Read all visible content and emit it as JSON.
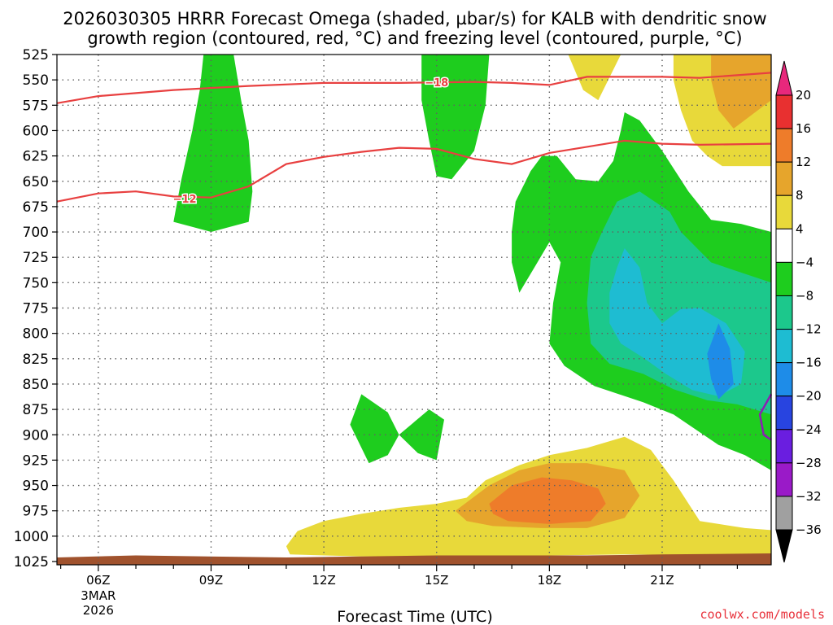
{
  "chart_data": {
    "type": "contour",
    "title_line1": "2026030305 HRRR Forecast Omega (shaded, µbar/s) for KALB with dendritic snow",
    "title_line2": "growth region (contoured, red, °C) and freezing level (contoured, purple, °C)",
    "xlabel": "Forecast Time (UTC)",
    "credit": "coolwx.com/models",
    "x_range_hours": [
      4.9,
      23.9
    ],
    "y_levels": [
      525,
      550,
      575,
      600,
      625,
      650,
      675,
      700,
      725,
      750,
      775,
      800,
      825,
      850,
      875,
      900,
      925,
      950,
      975,
      1000,
      1025
    ],
    "x_ticks": [
      {
        "h": 6,
        "label": "06Z",
        "sub1": "3MAR",
        "sub2": "2026"
      },
      {
        "h": 9,
        "label": "09Z"
      },
      {
        "h": 12,
        "label": "12Z"
      },
      {
        "h": 15,
        "label": "15Z"
      },
      {
        "h": 18,
        "label": "18Z"
      },
      {
        "h": 21,
        "label": "21Z"
      }
    ],
    "colorbar": {
      "levels": [
        {
          "label": "20",
          "color": "#e8287c"
        },
        {
          "label": "16",
          "color": "#e83030"
        },
        {
          "label": "12",
          "color": "#ee7c2a"
        },
        {
          "label": "8",
          "color": "#e6a52c"
        },
        {
          "label": "4",
          "color": "#e8d93a"
        },
        {
          "label": "−4",
          "color": "#ffffff"
        },
        {
          "label": "−8",
          "color": "#1ecd1e"
        },
        {
          "label": "−12",
          "color": "#1cc88c"
        },
        {
          "label": "−16",
          "color": "#1ebcd2"
        },
        {
          "label": "−20",
          "color": "#1e8ce8"
        },
        {
          "label": "−24",
          "color": "#2844e0"
        },
        {
          "label": "−28",
          "color": "#6a1ee0"
        },
        {
          "label": "−32",
          "color": "#9a1ac8"
        },
        {
          "label": "−36",
          "color": "#a0a0a0"
        }
      ],
      "top_color": "#e8287c",
      "bottom_color": "#000000"
    },
    "contour_labels": [
      {
        "text": "−18",
        "h": 15.0,
        "p": 553
      },
      {
        "text": "−12",
        "h": 8.3,
        "p": 668
      }
    ],
    "isotherm_minus18": [
      [
        4.9,
        573
      ],
      [
        6,
        566
      ],
      [
        8,
        560
      ],
      [
        10,
        556
      ],
      [
        12,
        553
      ],
      [
        14,
        553
      ],
      [
        16,
        552
      ],
      [
        17,
        553
      ],
      [
        18,
        555
      ],
      [
        19,
        547
      ],
      [
        20,
        547
      ],
      [
        21,
        547
      ],
      [
        22,
        548
      ],
      [
        23.9,
        543
      ]
    ],
    "isotherm_minus12": [
      [
        4.9,
        670
      ],
      [
        6,
        662
      ],
      [
        7,
        660
      ],
      [
        8,
        665
      ],
      [
        9,
        666
      ],
      [
        10,
        655
      ],
      [
        11,
        633
      ],
      [
        12,
        626
      ],
      [
        13,
        621
      ],
      [
        14,
        617
      ],
      [
        15,
        618
      ],
      [
        16,
        628
      ],
      [
        17,
        633
      ],
      [
        18,
        622
      ],
      [
        19,
        616
      ],
      [
        20,
        610
      ],
      [
        21,
        613
      ],
      [
        22,
        614
      ],
      [
        23.9,
        613
      ]
    ],
    "freezing_level": [
      [
        23.9,
        860
      ],
      [
        23.6,
        880
      ],
      [
        23.7,
        900
      ],
      [
        23.9,
        905
      ]
    ],
    "terrain_color": "#a0522d",
    "line_colors": {
      "isotherm": "#e84040",
      "freezing": "#8c1eb4",
      "grid": "#606060"
    }
  }
}
